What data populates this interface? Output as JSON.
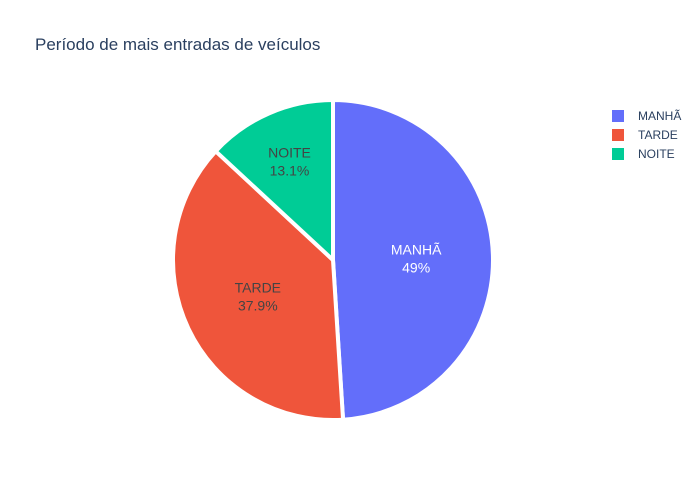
{
  "chart_data": {
    "type": "pie",
    "title": "Período de mais entradas de veículos",
    "slices": [
      {
        "label": "MANHÃ",
        "value": 49.0,
        "percent_text": "49%",
        "color": "#636efa",
        "text_color": "#ffffff"
      },
      {
        "label": "TARDE",
        "value": 37.9,
        "percent_text": "37.9%",
        "color": "#ef553b",
        "text_color": "#444444"
      },
      {
        "label": "NOITE",
        "value": 13.1,
        "percent_text": "13.1%",
        "color": "#00cc96",
        "text_color": "#444444"
      }
    ],
    "legend": {
      "placement": "top-right",
      "items": [
        "MANHÃ",
        "TARDE",
        "NOITE"
      ]
    },
    "start_angle": "12 o'clock",
    "direction": "clockwise"
  }
}
